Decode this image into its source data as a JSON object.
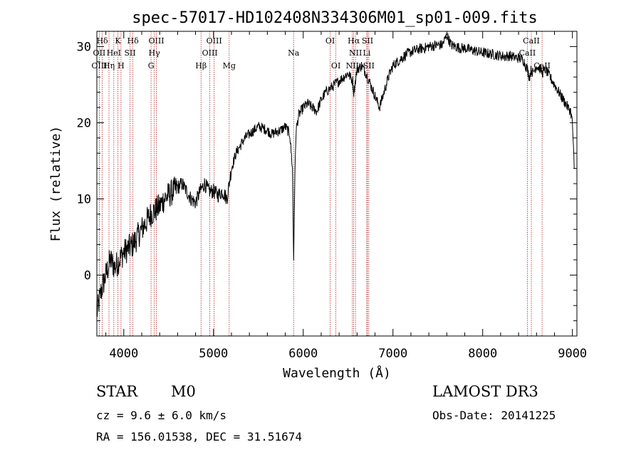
{
  "chart_data": {
    "type": "line",
    "title": "spec-57017-HD102408N334306M01_sp01-009.fits",
    "xlabel": "Wavelength (Å)",
    "ylabel": "Flux (relative)",
    "xlim": [
      3700,
      9050
    ],
    "ylim": [
      -8,
      32
    ],
    "xticks": [
      4000,
      5000,
      6000,
      7000,
      8000,
      9000
    ],
    "yticks": [
      0,
      10,
      20,
      30
    ],
    "series": [
      {
        "name": "flux",
        "x": [
          3700,
          3750,
          3800,
          3850,
          3900,
          3950,
          4000,
          4050,
          4100,
          4150,
          4200,
          4250,
          4300,
          4350,
          4400,
          4450,
          4500,
          4550,
          4600,
          4650,
          4700,
          4750,
          4800,
          4850,
          4900,
          4950,
          5000,
          5050,
          5100,
          5150,
          5200,
          5250,
          5300,
          5350,
          5400,
          5450,
          5500,
          5550,
          5600,
          5650,
          5700,
          5750,
          5800,
          5850,
          5880,
          5893,
          5905,
          5920,
          5950,
          6000,
          6050,
          6100,
          6150,
          6200,
          6250,
          6300,
          6350,
          6400,
          6450,
          6500,
          6550,
          6563,
          6600,
          6650,
          6700,
          6750,
          6800,
          6850,
          6900,
          6950,
          7000,
          7050,
          7100,
          7150,
          7200,
          7250,
          7300,
          7350,
          7400,
          7450,
          7500,
          7550,
          7600,
          7650,
          7700,
          7750,
          7800,
          7850,
          7900,
          7950,
          8000,
          8050,
          8100,
          8150,
          8200,
          8250,
          8300,
          8350,
          8400,
          8450,
          8498,
          8520,
          8542,
          8560,
          8600,
          8650,
          8662,
          8700,
          8750,
          8800,
          8850,
          8900,
          8950,
          8980,
          9000,
          9020
        ],
        "values": [
          -5,
          -2,
          0,
          2,
          1,
          2,
          3,
          3.5,
          4,
          5,
          6,
          7,
          8,
          8.5,
          9,
          10,
          10.5,
          11,
          11.5,
          12,
          11,
          10,
          9.5,
          11,
          12,
          11,
          11,
          10.5,
          11,
          10,
          14,
          16,
          17,
          18,
          18.5,
          19,
          19.5,
          19.3,
          19,
          18.5,
          18.8,
          19,
          19.5,
          18.5,
          14,
          2,
          12,
          19,
          21,
          22,
          22.5,
          22,
          21.5,
          23,
          24,
          24.5,
          25,
          25.5,
          26,
          26.5,
          25.5,
          24,
          27,
          27.5,
          26.5,
          25,
          23.5,
          22,
          24,
          26,
          27.5,
          28,
          28.5,
          29,
          29.3,
          29.5,
          29.7,
          29.8,
          30,
          30.1,
          30.2,
          30.2,
          31.5,
          30.2,
          30,
          29.8,
          29.8,
          29.6,
          29.5,
          29.3,
          29.2,
          29.1,
          29,
          28.9,
          28.8,
          28.7,
          28.8,
          28.6,
          28.5,
          28.3,
          27,
          26,
          27,
          26.5,
          27.5,
          27,
          26.5,
          27,
          26,
          25,
          24,
          23,
          22,
          21.5,
          20,
          14
        ]
      }
    ],
    "lines": [
      {
        "label": "Hδ",
        "x": 3760,
        "row": 1
      },
      {
        "label": "OII",
        "x": 3727,
        "row": 2
      },
      {
        "label": "OIII",
        "x": 3727,
        "row": 3
      },
      {
        "label": "HeI",
        "x": 3889,
        "row": 2
      },
      {
        "label": "Hη",
        "x": 3835,
        "row": 3
      },
      {
        "label": "K",
        "x": 3934,
        "row": 1
      },
      {
        "label": "H",
        "x": 3969,
        "row": 3
      },
      {
        "label": "SII",
        "x": 4070,
        "row": 2
      },
      {
        "label": "Hδ",
        "x": 4102,
        "row": 1
      },
      {
        "label": "OIII",
        "x": 4363,
        "row": 1
      },
      {
        "label": "Hγ",
        "x": 4340,
        "row": 2
      },
      {
        "label": "G",
        "x": 4304,
        "row": 3
      },
      {
        "label": "Hβ",
        "x": 4861,
        "row": 3
      },
      {
        "label": "OIII",
        "x": 5007,
        "row": 1
      },
      {
        "label": "OIII",
        "x": 4959,
        "row": 2
      },
      {
        "label": "Mg",
        "x": 5175,
        "row": 3
      },
      {
        "label": "Na",
        "x": 5893,
        "row": 2
      },
      {
        "label": "OI",
        "x": 6300,
        "row": 1
      },
      {
        "label": "OI",
        "x": 6364,
        "row": 3
      },
      {
        "label": "Hα",
        "x": 6563,
        "row": 1
      },
      {
        "label": "SII",
        "x": 6716,
        "row": 1
      },
      {
        "label": "NII",
        "x": 6583,
        "row": 2
      },
      {
        "label": "Li",
        "x": 6708,
        "row": 2
      },
      {
        "label": "NII",
        "x": 6548,
        "row": 3
      },
      {
        "label": "SII",
        "x": 6731,
        "row": 3
      },
      {
        "label": "CaII",
        "x": 8542,
        "row": 1
      },
      {
        "label": "CaII",
        "x": 8498,
        "row": 2
      },
      {
        "label": "CaII",
        "x": 8662,
        "row": 3
      }
    ]
  },
  "info": {
    "class": "STAR",
    "subclass": "M0",
    "survey": "LAMOST DR3",
    "cz": "cz = 9.6 ± 6.0 km/s",
    "obs_date": "Obs-Date: 20141225",
    "coords": "RA = 156.01538, DEC =  31.51674"
  },
  "colors": {
    "line_marker": "#b22222",
    "spectrum": "#000000"
  }
}
